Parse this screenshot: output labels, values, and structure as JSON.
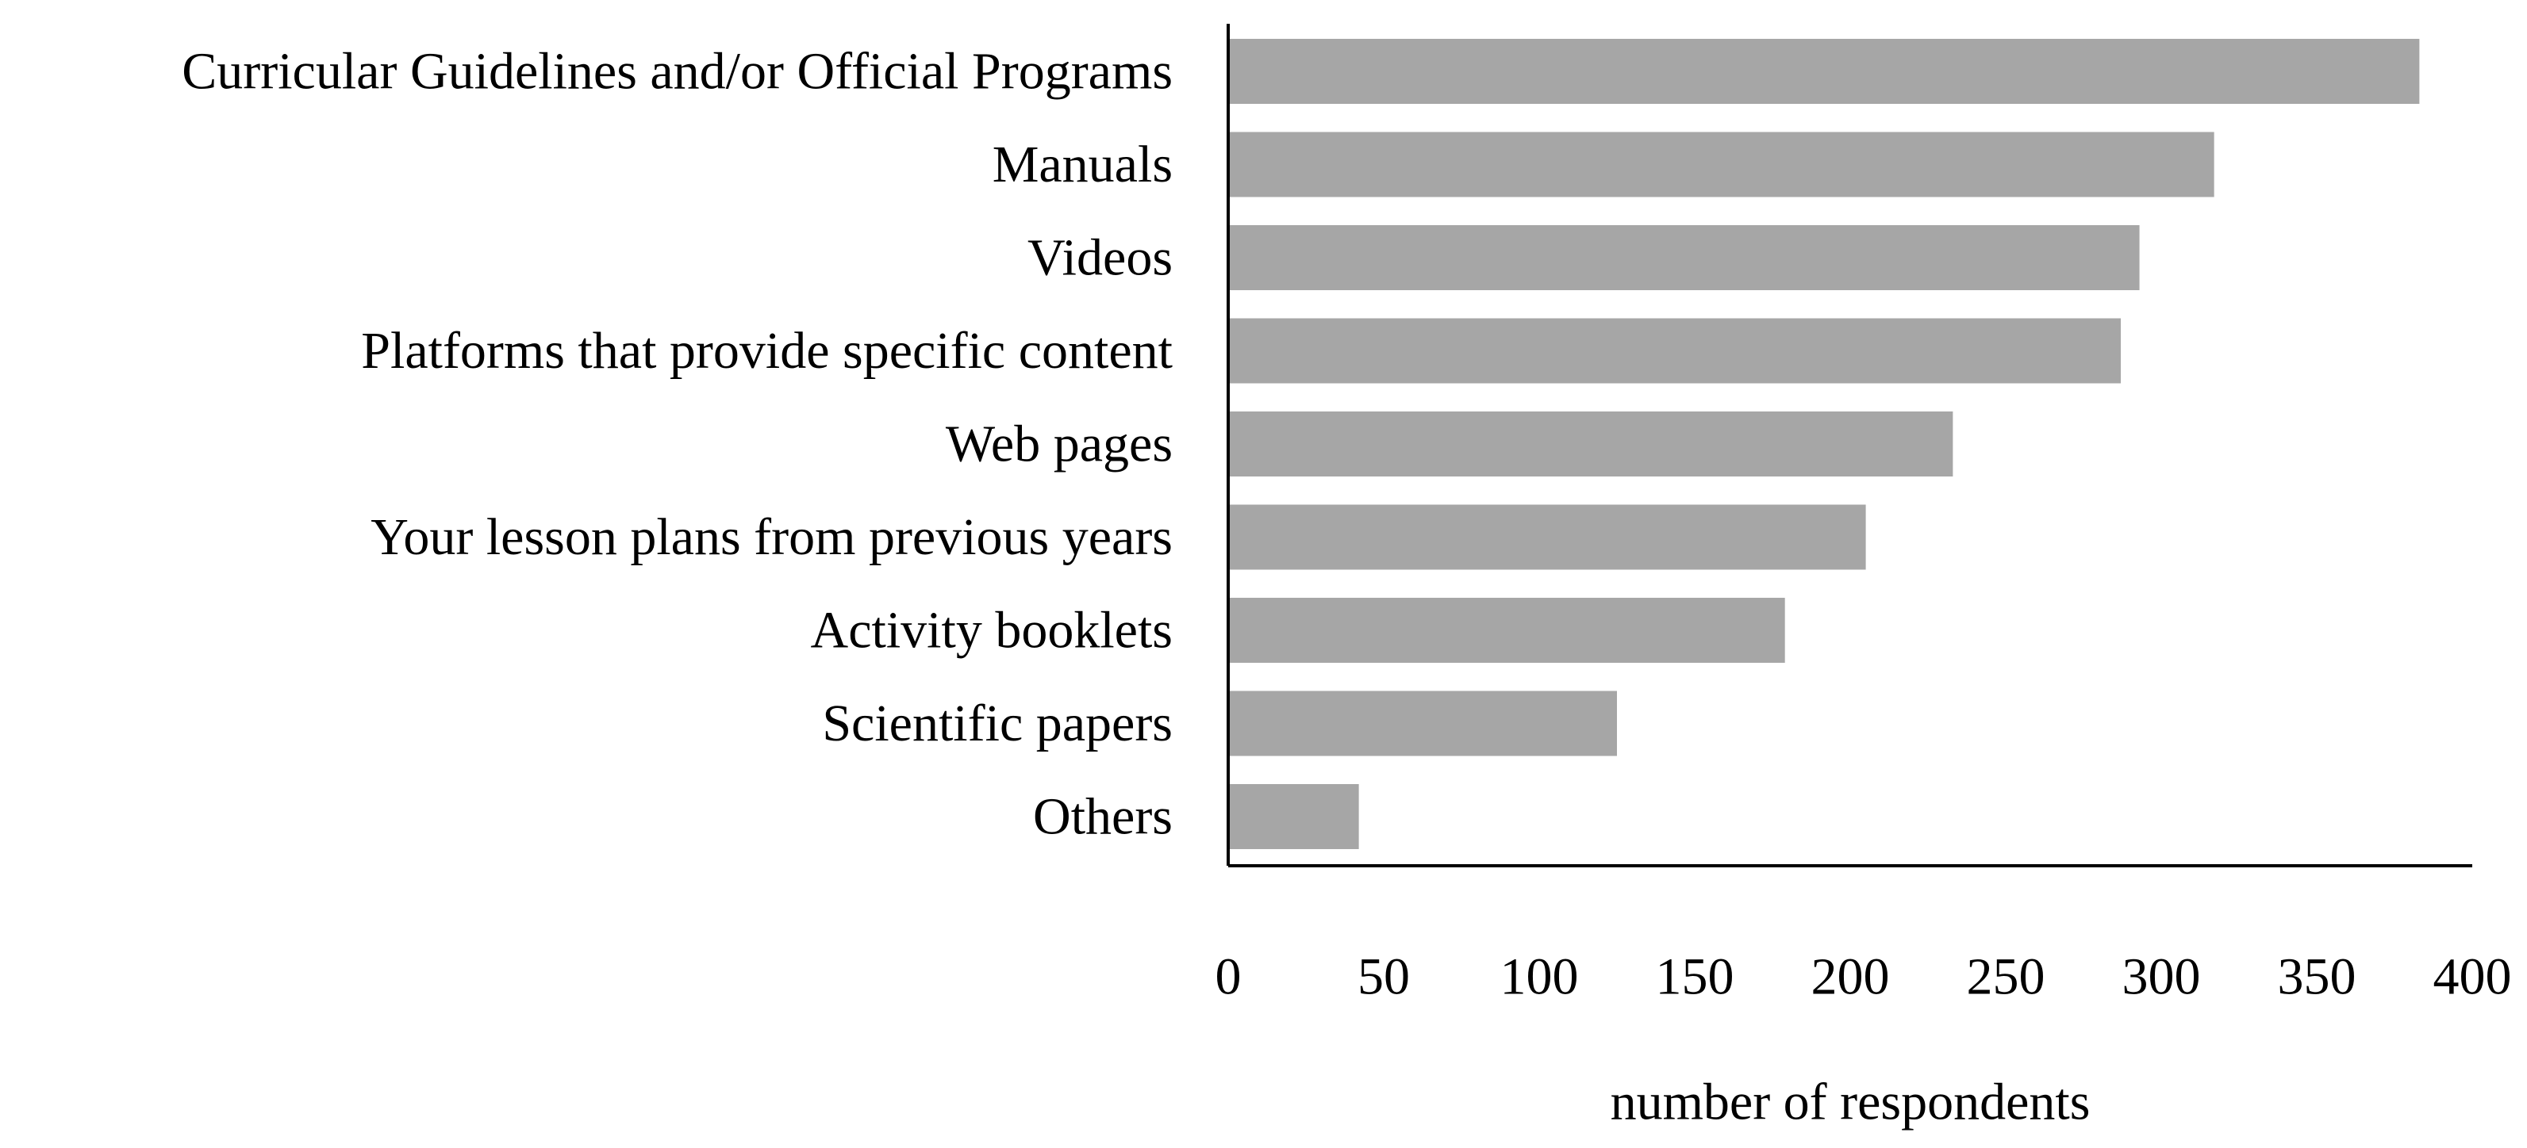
{
  "chart_data": {
    "type": "bar",
    "orientation": "horizontal",
    "categories": [
      "Curricular Guidelines and/or Official Programs",
      "Manuals",
      "Videos",
      "Platforms that provide specific content",
      "Web pages",
      "Your lesson plans from previous years",
      "Activity booklets",
      "Scientific papers",
      "Others"
    ],
    "values": [
      383,
      317,
      293,
      287,
      233,
      205,
      179,
      125,
      42
    ],
    "xlabel": "number of respondents",
    "ylabel": "",
    "xlim": [
      0,
      400
    ],
    "xticks": [
      "0",
      "50",
      "100",
      "150",
      "200",
      "250",
      "300",
      "350",
      "400"
    ],
    "grid": false,
    "bar_color": "#a6a6a6"
  }
}
